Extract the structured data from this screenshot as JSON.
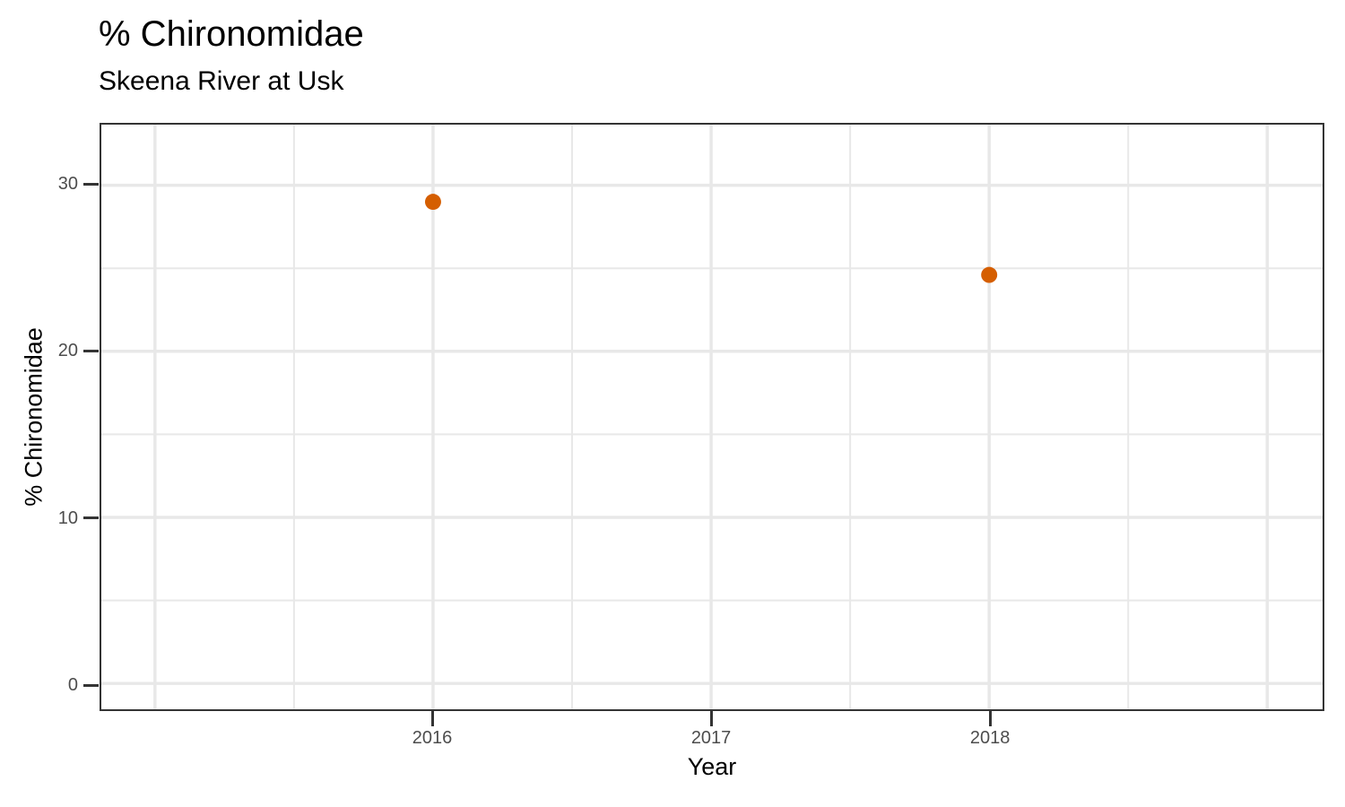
{
  "colors": {
    "point": "#D55E00",
    "grid": "#E8E8E8",
    "axis": "#343434",
    "tick_label": "#4D4D4D",
    "text": "#000000",
    "background": "#FFFFFF"
  },
  "chart_data": {
    "type": "scatter",
    "title": "% Chironomidae",
    "subtitle": "Skeena River at Usk",
    "xlabel": "Year",
    "ylabel": "% Chironomidae",
    "points": [
      {
        "x": 2016,
        "y": 29.0
      },
      {
        "x": 2018,
        "y": 24.6
      }
    ],
    "point_radius_px": 9,
    "xlim": [
      2014.807,
      2019.199
    ],
    "ylim": [
      -1.556,
      33.65
    ],
    "x_ticks_labeled": [
      2016,
      2017,
      2018
    ],
    "x_gridlines_major": [
      2015,
      2016,
      2017,
      2018,
      2019
    ],
    "x_gridlines_minor": [
      2015.5,
      2016.5,
      2017.5,
      2018.5
    ],
    "y_ticks_labeled": [
      0,
      10,
      20,
      30
    ],
    "y_gridlines_major": [
      0,
      10,
      20,
      30
    ],
    "y_gridlines_minor": [
      5,
      15,
      25
    ],
    "grid": true,
    "legend": "none"
  }
}
